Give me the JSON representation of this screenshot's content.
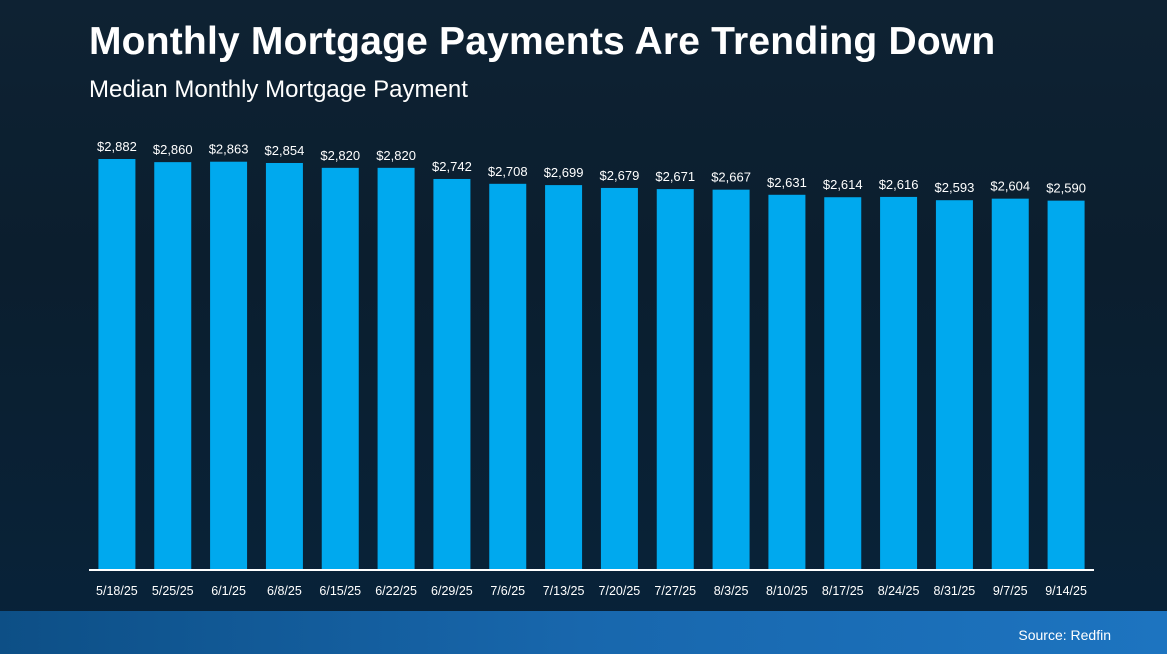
{
  "header": {
    "title": "Monthly Mortgage Payments Are Trending Down",
    "subtitle": "Median Monthly Mortgage Payment"
  },
  "footer": {
    "source": "Source: Redfin"
  },
  "colors": {
    "bar": "#00a9ee",
    "axis": "#ffffff",
    "label": "#ffffff",
    "footer_band": "#1867ad"
  },
  "chart_data": {
    "type": "bar",
    "title": "Monthly Mortgage Payments Are Trending Down",
    "subtitle": "Median Monthly Mortgage Payment",
    "xlabel": "",
    "ylabel": "",
    "categories": [
      "5/18/25",
      "5/25/25",
      "6/1/25",
      "6/8/25",
      "6/15/25",
      "6/22/25",
      "6/29/25",
      "7/6/25",
      "7/13/25",
      "7/20/25",
      "7/27/25",
      "8/3/25",
      "8/10/25",
      "8/17/25",
      "8/24/25",
      "8/31/25",
      "9/7/25",
      "9/14/25"
    ],
    "values": [
      2882,
      2860,
      2863,
      2854,
      2820,
      2820,
      2742,
      2708,
      2699,
      2679,
      2671,
      2667,
      2631,
      2614,
      2616,
      2593,
      2604,
      2590
    ],
    "data_labels": [
      "$2,882",
      "$2,860",
      "$2,863",
      "$2,854",
      "$2,820",
      "$2,820",
      "$2,742",
      "$2,708",
      "$2,699",
      "$2,679",
      "$2,671",
      "$2,667",
      "$2,631",
      "$2,614",
      "$2,616",
      "$2,593",
      "$2,604",
      "$2,590"
    ],
    "ylim": [
      0,
      2882
    ],
    "grid": false,
    "legend": "none"
  }
}
